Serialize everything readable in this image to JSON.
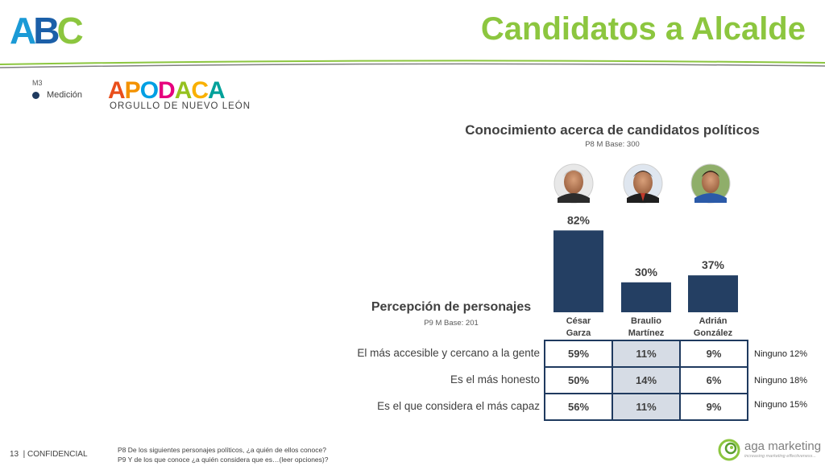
{
  "header": {
    "logo_text": "ABC",
    "title": "Candidatos a Alcalde",
    "colors": {
      "title": "#8cc63f",
      "line_green": "#8cc63f",
      "line_gray": "#7f7f7f"
    }
  },
  "legend": {
    "code": "M3",
    "item_label": "Medición",
    "color": "#1f3a5f"
  },
  "apodaca": {
    "word": "APODACA",
    "letter_colors": [
      "#e94e1b",
      "#f39200",
      "#009fe3",
      "#e6007e",
      "#95c11f",
      "#f9b000",
      "#00a19a"
    ],
    "subtitle": "ORGULLO DE NUEVO LEÓN"
  },
  "chart": {
    "title": "Conocimiento acerca de candidatos políticos",
    "base": "P8 M Base: 300",
    "candidates": [
      {
        "first": "César",
        "last": "Garza",
        "photo": "person-photo-cesar"
      },
      {
        "first": "Braulio",
        "last": "Martínez",
        "photo": "person-photo-braulio"
      },
      {
        "first": "Adrián",
        "last": "González",
        "photo": "person-photo-adrian"
      }
    ],
    "bar_color": "#243f63"
  },
  "chart_data": {
    "type": "bar",
    "categories": [
      "César Garza",
      "Braulio Martínez",
      "Adrián González"
    ],
    "values": [
      82,
      30,
      37
    ],
    "value_labels": [
      "82%",
      "30%",
      "37%"
    ],
    "title": "Conocimiento acerca de candidatos políticos",
    "xlabel": "",
    "ylabel": "",
    "ylim": [
      0,
      100
    ],
    "grid": false
  },
  "perception": {
    "title": "Percepción de personajes",
    "base": "P9 M Base: 201",
    "rows": [
      {
        "label": "El más accesible y cercano a la gente",
        "values": [
          "59%",
          "11%",
          "9%"
        ],
        "ninguno": "Ninguno 12%"
      },
      {
        "label": "Es el más honesto",
        "values": [
          "50%",
          "14%",
          "6%"
        ],
        "ninguno": "Ninguno 18%"
      },
      {
        "label": "Es el que considera el más capaz",
        "values": [
          "56%",
          "11%",
          "9%"
        ],
        "ninguno": "Ninguno 15%"
      }
    ]
  },
  "footer": {
    "page": "13  | CONFIDENCIAL",
    "note1": "P8 De los siguientes personajes políticos, ¿a quién de ellos conoce?",
    "note2": "P9 Y de los que conoce ¿a quién considera que es…(leer opciones)?",
    "brand": "aga marketing",
    "tagline": "increasing marketing effectiveness..."
  }
}
